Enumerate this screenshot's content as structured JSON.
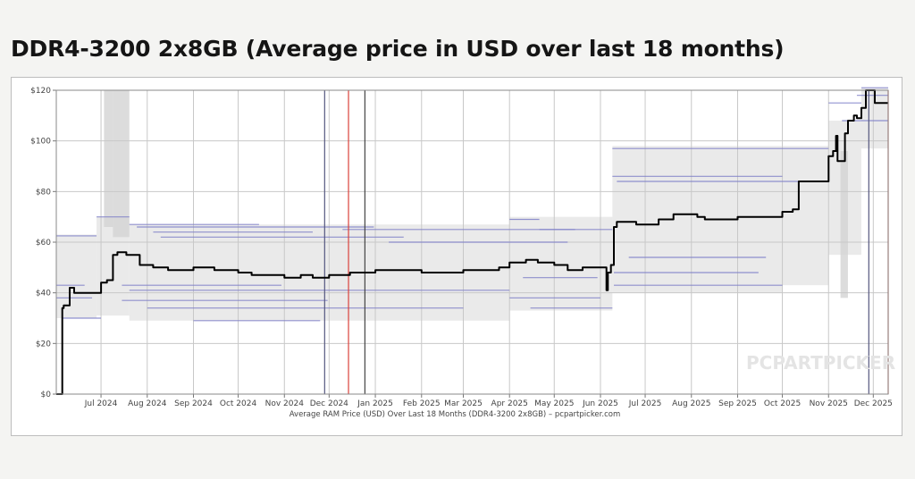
{
  "title": "DDR4-3200 2x8GB (Average price in USD over last 18 months)",
  "chart_data": {
    "type": "line",
    "caption": "Average RAM Price (USD) Over Last 18 Months (DDR4-3200 2x8GB) – pcpartpicker.com",
    "watermark": "PCPARTPICKER",
    "x_start": "2024-06-01",
    "x_end": "2025-12-11",
    "ylim": [
      0,
      120
    ],
    "yticks": [
      0,
      20,
      40,
      60,
      80,
      100,
      120
    ],
    "ytick_labels": [
      "$0",
      "$20",
      "$40",
      "$60",
      "$80",
      "$100",
      "$120"
    ],
    "month_labels": [
      {
        "date": "2024-07-01",
        "label": "Jul 2024"
      },
      {
        "date": "2024-08-01",
        "label": "Aug 2024"
      },
      {
        "date": "2024-09-01",
        "label": "Sep 2024"
      },
      {
        "date": "2024-10-01",
        "label": "Oct 2024"
      },
      {
        "date": "2024-11-01",
        "label": "Nov 2024"
      },
      {
        "date": "2024-12-01",
        "label": "Dec 2024"
      },
      {
        "date": "2025-01-01",
        "label": "Jan 2025"
      },
      {
        "date": "2025-02-01",
        "label": "Feb 2025"
      },
      {
        "date": "2025-03-01",
        "label": "Mar 2025"
      },
      {
        "date": "2025-04-01",
        "label": "Apr 2025"
      },
      {
        "date": "2025-05-01",
        "label": "May 2025"
      },
      {
        "date": "2025-06-01",
        "label": "Jun 2025"
      },
      {
        "date": "2025-07-01",
        "label": "Jul 2025"
      },
      {
        "date": "2025-08-01",
        "label": "Aug 2025"
      },
      {
        "date": "2025-09-01",
        "label": "Sep 2025"
      },
      {
        "date": "2025-10-01",
        "label": "Oct 2025"
      },
      {
        "date": "2025-11-01",
        "label": "Nov 2025"
      },
      {
        "date": "2025-12-01",
        "label": "Dec 2025"
      }
    ],
    "grid": true,
    "series": [
      {
        "color": "#000000",
        "points": [
          [
            "2024-06-01",
            0
          ],
          [
            "2024-06-04",
            0
          ],
          [
            "2024-06-05",
            34
          ],
          [
            "2024-06-06",
            35
          ],
          [
            "2024-06-08",
            35
          ],
          [
            "2024-06-10",
            42
          ],
          [
            "2024-06-13",
            40
          ],
          [
            "2024-06-28",
            40
          ],
          [
            "2024-07-01",
            44
          ],
          [
            "2024-07-05",
            45
          ],
          [
            "2024-07-09",
            55
          ],
          [
            "2024-07-12",
            56
          ],
          [
            "2024-07-18",
            55
          ],
          [
            "2024-07-24",
            55
          ],
          [
            "2024-07-27",
            51
          ],
          [
            "2024-08-05",
            50
          ],
          [
            "2024-08-15",
            49
          ],
          [
            "2024-09-01",
            50
          ],
          [
            "2024-09-15",
            49
          ],
          [
            "2024-10-01",
            48
          ],
          [
            "2024-10-10",
            47
          ],
          [
            "2024-10-22",
            47
          ],
          [
            "2024-11-01",
            46
          ],
          [
            "2024-11-12",
            47
          ],
          [
            "2024-11-20",
            46
          ],
          [
            "2024-12-01",
            47
          ],
          [
            "2024-12-15",
            48
          ],
          [
            "2025-01-01",
            49
          ],
          [
            "2025-02-01",
            48
          ],
          [
            "2025-03-01",
            49
          ],
          [
            "2025-03-25",
            50
          ],
          [
            "2025-04-01",
            52
          ],
          [
            "2025-04-12",
            53
          ],
          [
            "2025-04-20",
            52
          ],
          [
            "2025-05-01",
            51
          ],
          [
            "2025-05-10",
            49
          ],
          [
            "2025-05-20",
            50
          ],
          [
            "2025-06-04",
            50
          ],
          [
            "2025-06-05",
            41
          ],
          [
            "2025-06-06",
            48
          ],
          [
            "2025-06-08",
            51
          ],
          [
            "2025-06-10",
            66
          ],
          [
            "2025-06-12",
            68
          ],
          [
            "2025-06-25",
            67
          ],
          [
            "2025-07-10",
            69
          ],
          [
            "2025-07-20",
            71
          ],
          [
            "2025-08-05",
            70
          ],
          [
            "2025-08-10",
            69
          ],
          [
            "2025-09-01",
            70
          ],
          [
            "2025-09-20",
            70
          ],
          [
            "2025-10-01",
            72
          ],
          [
            "2025-10-08",
            73
          ],
          [
            "2025-10-12",
            84
          ],
          [
            "2025-10-30",
            84
          ],
          [
            "2025-11-01",
            94
          ],
          [
            "2025-11-04",
            96
          ],
          [
            "2025-11-06",
            102
          ],
          [
            "2025-11-07",
            92
          ],
          [
            "2025-11-10",
            92
          ],
          [
            "2025-11-12",
            103
          ],
          [
            "2025-11-14",
            108
          ],
          [
            "2025-11-18",
            110
          ],
          [
            "2025-11-20",
            109
          ],
          [
            "2025-11-23",
            113
          ],
          [
            "2025-11-26",
            120
          ],
          [
            "2025-11-29",
            120
          ],
          [
            "2025-12-02",
            115
          ],
          [
            "2025-12-11",
            115
          ]
        ]
      }
    ],
    "range_bands": [
      {
        "start": "2024-06-01",
        "end": "2024-06-28",
        "low": 30,
        "high": 63
      },
      {
        "start": "2024-06-28",
        "end": "2024-07-20",
        "low": 31,
        "high": 70
      },
      {
        "start": "2024-07-20",
        "end": "2025-04-01",
        "low": 29,
        "high": 67
      },
      {
        "start": "2025-04-01",
        "end": "2025-06-09",
        "low": 33,
        "high": 70
      },
      {
        "start": "2025-06-09",
        "end": "2025-10-01",
        "low": 40,
        "high": 98
      },
      {
        "start": "2025-10-01",
        "end": "2025-11-01",
        "low": 43,
        "high": 98
      },
      {
        "start": "2025-11-01",
        "end": "2025-11-23",
        "low": 55,
        "high": 108
      },
      {
        "start": "2025-11-23",
        "end": "2025-12-11",
        "low": 97,
        "high": 121
      }
    ],
    "gray_spikes": [
      {
        "start": "2024-07-03",
        "end": "2024-07-09",
        "low": 66,
        "high": 120
      },
      {
        "start": "2024-07-09",
        "end": "2024-07-20",
        "low": 62,
        "high": 120
      },
      {
        "start": "2025-11-09",
        "end": "2025-11-14",
        "low": 38,
        "high": 96
      }
    ],
    "retailer_lines": [
      {
        "start": "2024-06-01",
        "end": "2024-06-28",
        "value": 62.5
      },
      {
        "start": "2024-06-01",
        "end": "2024-06-20",
        "value": 43
      },
      {
        "start": "2024-06-01",
        "end": "2024-06-25",
        "value": 38
      },
      {
        "start": "2024-06-05",
        "end": "2024-07-01",
        "value": 30
      },
      {
        "start": "2024-06-28",
        "end": "2024-07-20",
        "value": 70
      },
      {
        "start": "2024-07-20",
        "end": "2024-10-15",
        "value": 67
      },
      {
        "start": "2024-07-25",
        "end": "2024-12-31",
        "value": 66
      },
      {
        "start": "2024-08-05",
        "end": "2024-11-20",
        "value": 64
      },
      {
        "start": "2024-08-10",
        "end": "2025-01-20",
        "value": 62
      },
      {
        "start": "2024-07-15",
        "end": "2024-10-30",
        "value": 43
      },
      {
        "start": "2024-07-20",
        "end": "2025-04-01",
        "value": 41
      },
      {
        "start": "2024-07-15",
        "end": "2024-11-30",
        "value": 37
      },
      {
        "start": "2024-08-01",
        "end": "2025-03-01",
        "value": 34
      },
      {
        "start": "2024-09-01",
        "end": "2024-11-25",
        "value": 29
      },
      {
        "start": "2024-12-10",
        "end": "2025-05-15",
        "value": 65
      },
      {
        "start": "2025-01-10",
        "end": "2025-05-10",
        "value": 60
      },
      {
        "start": "2025-04-01",
        "end": "2025-04-21",
        "value": 69
      },
      {
        "start": "2025-04-21",
        "end": "2025-06-09",
        "value": 65
      },
      {
        "start": "2025-04-10",
        "end": "2025-05-30",
        "value": 46
      },
      {
        "start": "2025-04-01",
        "end": "2025-06-01",
        "value": 38
      },
      {
        "start": "2025-04-15",
        "end": "2025-06-09",
        "value": 34
      },
      {
        "start": "2025-06-09",
        "end": "2025-11-01",
        "value": 97
      },
      {
        "start": "2025-06-09",
        "end": "2025-10-01",
        "value": 86
      },
      {
        "start": "2025-06-12",
        "end": "2025-10-20",
        "value": 84
      },
      {
        "start": "2025-06-20",
        "end": "2025-09-20",
        "value": 54
      },
      {
        "start": "2025-06-10",
        "end": "2025-09-15",
        "value": 48
      },
      {
        "start": "2025-06-10",
        "end": "2025-10-01",
        "value": 43
      },
      {
        "start": "2025-11-01",
        "end": "2025-11-23",
        "value": 115
      },
      {
        "start": "2025-11-10",
        "end": "2025-12-11",
        "value": 108
      },
      {
        "start": "2025-11-23",
        "end": "2025-12-11",
        "value": 121
      },
      {
        "start": "2025-11-20",
        "end": "2025-12-11",
        "value": 118
      }
    ],
    "vertical_markers": [
      {
        "date": "2024-11-28",
        "color": "#55577f"
      },
      {
        "date": "2024-12-14",
        "color": "#d9413b"
      },
      {
        "date": "2024-12-25",
        "color": "#444444"
      },
      {
        "date": "2025-11-28",
        "color": "#55577f"
      },
      {
        "date": "2025-12-11",
        "color": "#d9413b"
      }
    ]
  }
}
